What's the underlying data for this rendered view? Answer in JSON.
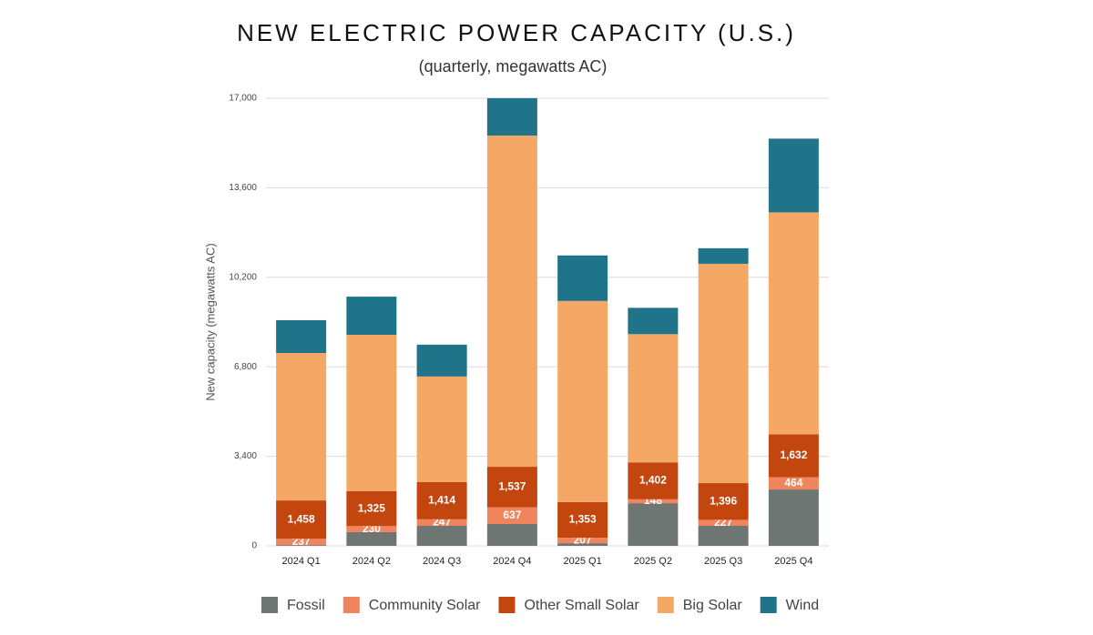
{
  "chart_data": {
    "type": "stacked_bar",
    "title": "NEW ELECTRIC POWER CAPACITY (U.S.)",
    "subtitle": "(quarterly, megawatts AC)",
    "y_label": "New capacity (megawatts AC)",
    "categories": [
      "2024 Q1",
      "2024 Q2",
      "2024 Q3",
      "2024 Q4",
      "2025 Q1",
      "2025 Q2",
      "2025 Q3",
      "2025 Q4"
    ],
    "series": [
      {
        "name": "Fossil",
        "color": "#6e7673",
        "values": [
          30,
          520,
          760,
          830,
          100,
          1620,
          760,
          2140
        ]
      },
      {
        "name": "Community Solar",
        "color": "#f0845c",
        "data_labels": true,
        "values": [
          237,
          230,
          247,
          637,
          207,
          148,
          227,
          464
        ]
      },
      {
        "name": "Other Small Solar",
        "color": "#c4460f",
        "data_labels": true,
        "values": [
          1458,
          1325,
          1414,
          1537,
          1353,
          1402,
          1396,
          1632
        ],
        "value_labels": [
          "1,458",
          "1,325",
          "1,414",
          "1,537",
          "1,353",
          "1,402",
          "1,396",
          "1,632"
        ]
      },
      {
        "name": "Big Solar",
        "color": "#f5a866",
        "values": [
          5600,
          5940,
          4010,
          12580,
          7640,
          4870,
          8330,
          8430
        ]
      },
      {
        "name": "Wind",
        "color": "#1f748a",
        "values": [
          1245,
          1450,
          1210,
          1420,
          1730,
          1000,
          590,
          2800
        ]
      }
    ],
    "ylim": [
      0,
      17000
    ],
    "yticks": [
      0,
      {
        "value": 3400,
        "label": "3,400"
      },
      {
        "value": 6800,
        "label": "6,800"
      },
      {
        "value": 10200,
        "label": "10,200"
      },
      {
        "value": 13600,
        "label": "13,600"
      },
      {
        "value": 17000,
        "label": "17,000"
      }
    ],
    "grid": true
  }
}
